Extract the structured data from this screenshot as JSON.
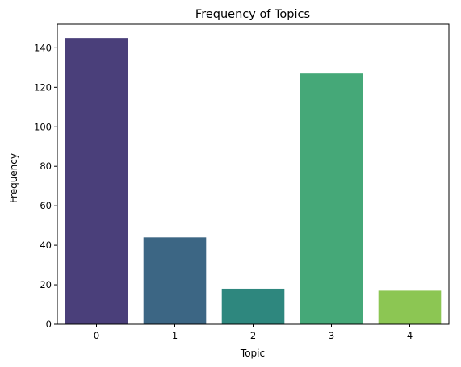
{
  "chart_data": {
    "type": "bar",
    "title": "Frequency of Topics",
    "xlabel": "Topic",
    "ylabel": "Frequency",
    "categories": [
      "0",
      "1",
      "2",
      "3",
      "4"
    ],
    "values": [
      145,
      44,
      18,
      127,
      17
    ],
    "colors": [
      "#4a3f7a",
      "#3c6684",
      "#2e877e",
      "#45a878",
      "#8cc653"
    ],
    "ylim": [
      0,
      152
    ],
    "yticks": [
      0,
      20,
      40,
      60,
      80,
      100,
      120,
      140
    ],
    "ytick_labels": [
      "0",
      "20",
      "40",
      "60",
      "80",
      "100",
      "120",
      "140"
    ],
    "grid": false,
    "legend": "none"
  }
}
